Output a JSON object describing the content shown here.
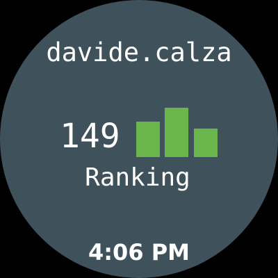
{
  "watch": {
    "username": "davide.calza",
    "ranking_value": "149",
    "ranking_label": "Ranking",
    "time": "4:06 PM",
    "bar_icon": "bar-chart-icon"
  },
  "colors": {
    "background": "#3f515b",
    "accent": "#6ab64d",
    "text": "#ffffff"
  }
}
